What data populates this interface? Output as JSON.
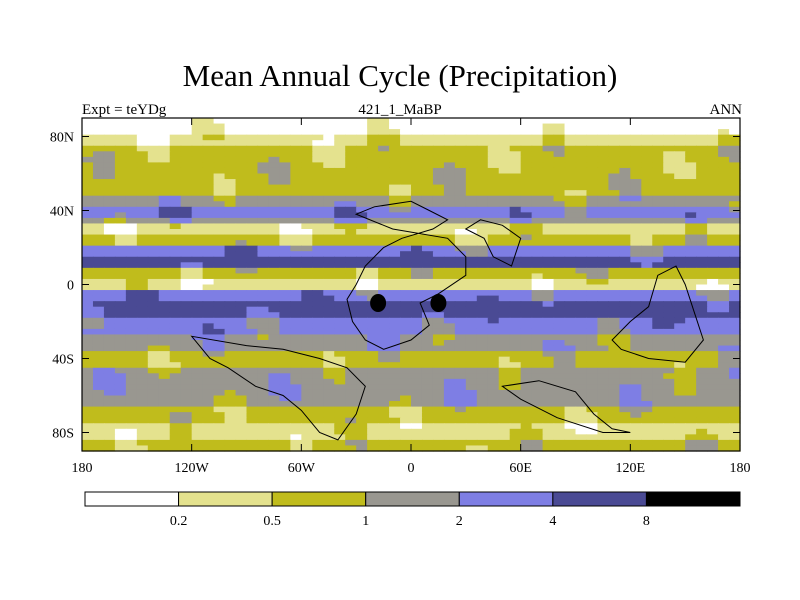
{
  "chart_data": {
    "type": "heatmap",
    "title": "Mean Annual Cycle (Precipitation)",
    "subtitle_left": "Expt = teYDg",
    "subtitle_center": "421_1_MaBP",
    "subtitle_right": "ANN",
    "xlim": [
      -180,
      180
    ],
    "ylim": [
      -90,
      90
    ],
    "x_ticks": [
      {
        "value": -180,
        "label": "180"
      },
      {
        "value": -120,
        "label": "120W"
      },
      {
        "value": -60,
        "label": "60W"
      },
      {
        "value": 0,
        "label": "0"
      },
      {
        "value": 60,
        "label": "60E"
      },
      {
        "value": 120,
        "label": "120E"
      },
      {
        "value": 180,
        "label": "180"
      }
    ],
    "y_ticks": [
      {
        "value": 80,
        "label": "80N"
      },
      {
        "value": 40,
        "label": "40N"
      },
      {
        "value": 0,
        "label": "0"
      },
      {
        "value": -40,
        "label": "40S"
      },
      {
        "value": -80,
        "label": "80S"
      }
    ],
    "levels": [
      0.2,
      0.5,
      1,
      2,
      4,
      8
    ],
    "level_labels": [
      "0.2",
      "0.5",
      "1",
      "2",
      "4",
      "8"
    ],
    "colors": [
      "#ffffff",
      "#e4e28e",
      "#c0bc1c",
      "#999790",
      "#7e7ee4",
      "#4a4a94",
      "#000000"
    ],
    "zonal_mean_class_by_lat": [
      {
        "lat": 85,
        "class": 0
      },
      {
        "lat": 78,
        "class": 1
      },
      {
        "lat": 70,
        "class": 2
      },
      {
        "lat": 60,
        "class": 2
      },
      {
        "lat": 50,
        "class": 2
      },
      {
        "lat": 45,
        "class": 3
      },
      {
        "lat": 40,
        "class": 4
      },
      {
        "lat": 35,
        "class": 3
      },
      {
        "lat": 30,
        "class": 1
      },
      {
        "lat": 25,
        "class": 2
      },
      {
        "lat": 20,
        "class": 4
      },
      {
        "lat": 12,
        "class": 5
      },
      {
        "lat": 5,
        "class": 2
      },
      {
        "lat": 0,
        "class": 1
      },
      {
        "lat": -5,
        "class": 4
      },
      {
        "lat": -12,
        "class": 5
      },
      {
        "lat": -22,
        "class": 4
      },
      {
        "lat": -30,
        "class": 3
      },
      {
        "lat": -40,
        "class": 2
      },
      {
        "lat": -50,
        "class": 3
      },
      {
        "lat": -60,
        "class": 3
      },
      {
        "lat": -70,
        "class": 2
      },
      {
        "lat": -80,
        "class": 1
      },
      {
        "lat": -88,
        "class": 2
      }
    ],
    "highlight_cells": [
      {
        "lon": -18,
        "lat": -10,
        "class": 6
      },
      {
        "lon": 15,
        "lat": -10,
        "class": 6
      }
    ]
  }
}
